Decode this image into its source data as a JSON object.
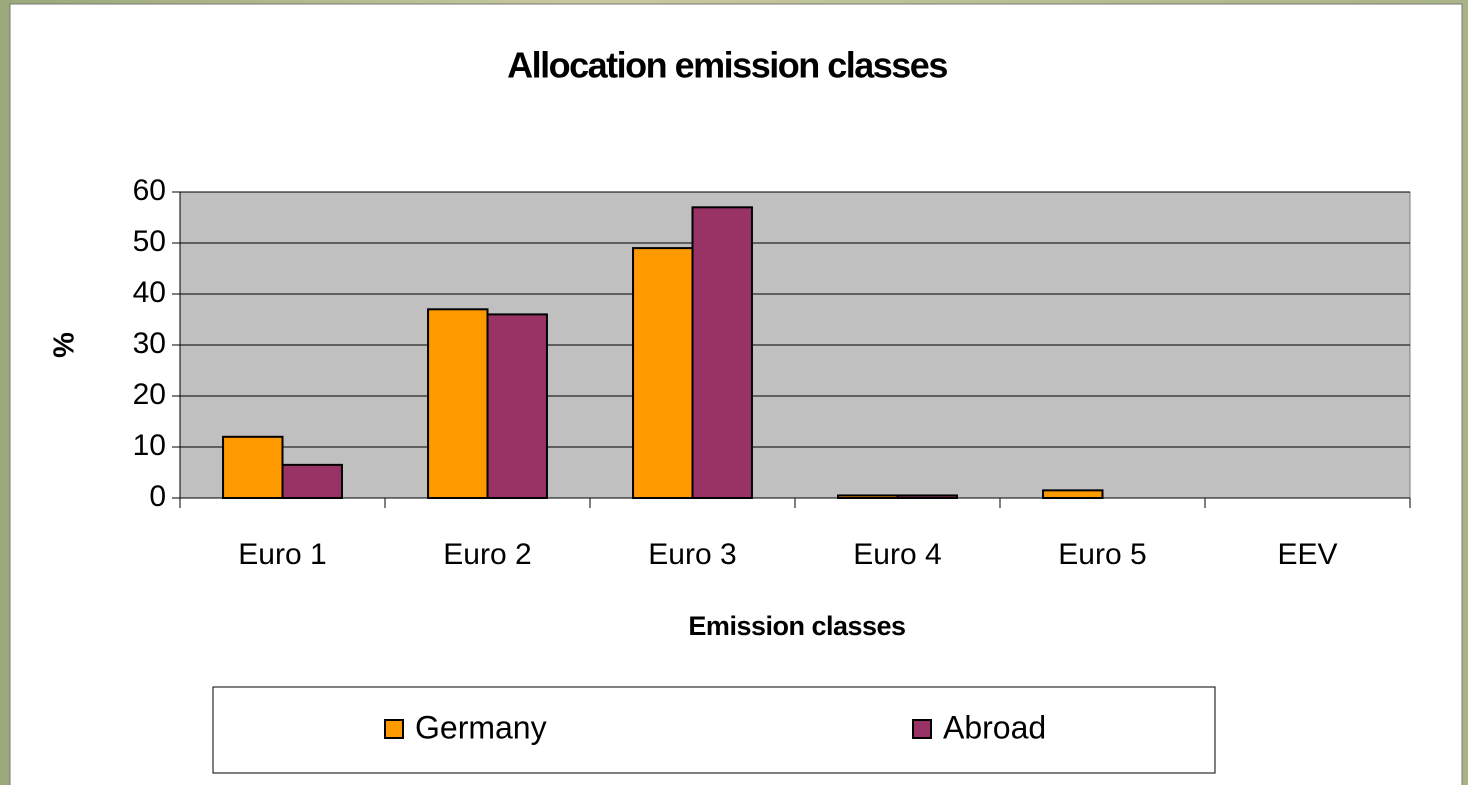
{
  "chart_data": {
    "type": "bar",
    "title": "Allocation emission classes",
    "x_label": "Emission classes",
    "y_label": "%",
    "categories": [
      "Euro 1",
      "Euro 2",
      "Euro 3",
      "Euro 4",
      "Euro 5",
      "EEV"
    ],
    "series": [
      {
        "name": "Germany",
        "color": "#ff9900",
        "values": [
          12,
          37,
          49,
          0.5,
          1.5,
          0
        ]
      },
      {
        "name": "Abroad",
        "color": "#993366",
        "values": [
          6.5,
          36,
          57,
          0.5,
          0,
          0
        ]
      }
    ],
    "ylim": [
      0,
      60
    ],
    "yticks": [
      0,
      10,
      20,
      30,
      40,
      50,
      60
    ],
    "grid": true,
    "legend": "bottom"
  }
}
